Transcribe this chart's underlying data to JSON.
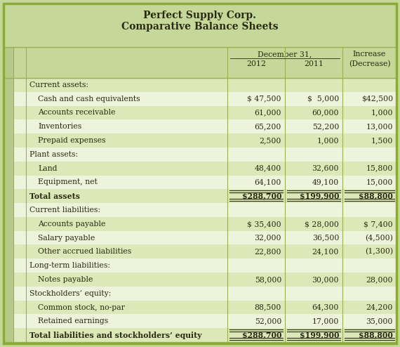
{
  "title_line1": "Perfect Supply Corp.",
  "title_line2": "Comparative Balance Sheets",
  "header_bg": "#c5d89a",
  "row_bg_dark": "#dce8b8",
  "row_bg_light": "#eef4dc",
  "left_col1_color": "#b8c88a",
  "left_col2_color": "#c8d89a",
  "divider_color": "#9ab050",
  "text_color": "#2a2a10",
  "outer_border_color": "#8aaa3a",
  "col_header_dec31": "December 31,",
  "col_header_2012": "2012",
  "col_header_2011": "2011",
  "col_header_increase": "Increase",
  "col_header_decrease": "(Decrease)",
  "rows": [
    {
      "label": "Current assets:",
      "indent": 0,
      "val2012": "",
      "val2011": "",
      "valinc": "",
      "bold": false,
      "total": false,
      "section_header": true
    },
    {
      "label": "Cash and cash equivalents",
      "indent": 1,
      "val2012": "$ 47,500",
      "val2011": "$  5,000",
      "valinc": "$42,500",
      "bold": false,
      "total": false,
      "section_header": false
    },
    {
      "label": "Accounts receivable",
      "indent": 1,
      "val2012": "61,000",
      "val2011": "60,000",
      "valinc": "1,000",
      "bold": false,
      "total": false,
      "section_header": false
    },
    {
      "label": "Inventories",
      "indent": 1,
      "val2012": "65,200",
      "val2011": "52,200",
      "valinc": "13,000",
      "bold": false,
      "total": false,
      "section_header": false
    },
    {
      "label": "Prepaid expenses",
      "indent": 1,
      "val2012": "2,500",
      "val2011": "1,000",
      "valinc": "1,500",
      "bold": false,
      "total": false,
      "section_header": false
    },
    {
      "label": "Plant assets:",
      "indent": 0,
      "val2012": "",
      "val2011": "",
      "valinc": "",
      "bold": false,
      "total": false,
      "section_header": true
    },
    {
      "label": "Land",
      "indent": 1,
      "val2012": "48,400",
      "val2011": "32,600",
      "valinc": "15,800",
      "bold": false,
      "total": false,
      "section_header": false
    },
    {
      "label": "Equipment, net",
      "indent": 1,
      "val2012": "64,100",
      "val2011": "49,100",
      "valinc": "15,000",
      "bold": false,
      "total": false,
      "section_header": false
    },
    {
      "label": "Total assets",
      "indent": 0,
      "val2012": "$288,700",
      "val2011": "$199,900",
      "valinc": "$88,800",
      "bold": true,
      "total": true,
      "section_header": false
    },
    {
      "label": "Current liabilities:",
      "indent": 0,
      "val2012": "",
      "val2011": "",
      "valinc": "",
      "bold": false,
      "total": false,
      "section_header": true
    },
    {
      "label": "Accounts payable",
      "indent": 1,
      "val2012": "$ 35,400",
      "val2011": "$ 28,000",
      "valinc": "$ 7,400",
      "bold": false,
      "total": false,
      "section_header": false
    },
    {
      "label": "Salary payable",
      "indent": 1,
      "val2012": "32,000",
      "val2011": "36,500",
      "valinc": "(4,500)",
      "bold": false,
      "total": false,
      "section_header": false
    },
    {
      "label": "Other accrued liabilities",
      "indent": 1,
      "val2012": "22,800",
      "val2011": "24,100",
      "valinc": "(1,300)",
      "bold": false,
      "total": false,
      "section_header": false
    },
    {
      "label": "Long-term liabilities:",
      "indent": 0,
      "val2012": "",
      "val2011": "",
      "valinc": "",
      "bold": false,
      "total": false,
      "section_header": true
    },
    {
      "label": "Notes payable",
      "indent": 1,
      "val2012": "58,000",
      "val2011": "30,000",
      "valinc": "28,000",
      "bold": false,
      "total": false,
      "section_header": false
    },
    {
      "label": "Stockholders’ equity:",
      "indent": 0,
      "val2012": "",
      "val2011": "",
      "valinc": "",
      "bold": false,
      "total": false,
      "section_header": true
    },
    {
      "label": "Common stock, no-par",
      "indent": 1,
      "val2012": "88,500",
      "val2011": "64,300",
      "valinc": "24,200",
      "bold": false,
      "total": false,
      "section_header": false
    },
    {
      "label": "Retained earnings",
      "indent": 1,
      "val2012": "52,000",
      "val2011": "17,000",
      "valinc": "35,000",
      "bold": false,
      "total": false,
      "section_header": false
    },
    {
      "label": "Total liabilities and stockholders’ equity",
      "indent": 0,
      "val2012": "$288,700",
      "val2011": "$199,900",
      "valinc": "$88,800",
      "bold": true,
      "total": true,
      "section_header": false
    }
  ],
  "font_size": 7.8,
  "title_font_size": 10.0,
  "figw": 5.7,
  "figh": 4.94,
  "dpi": 100
}
